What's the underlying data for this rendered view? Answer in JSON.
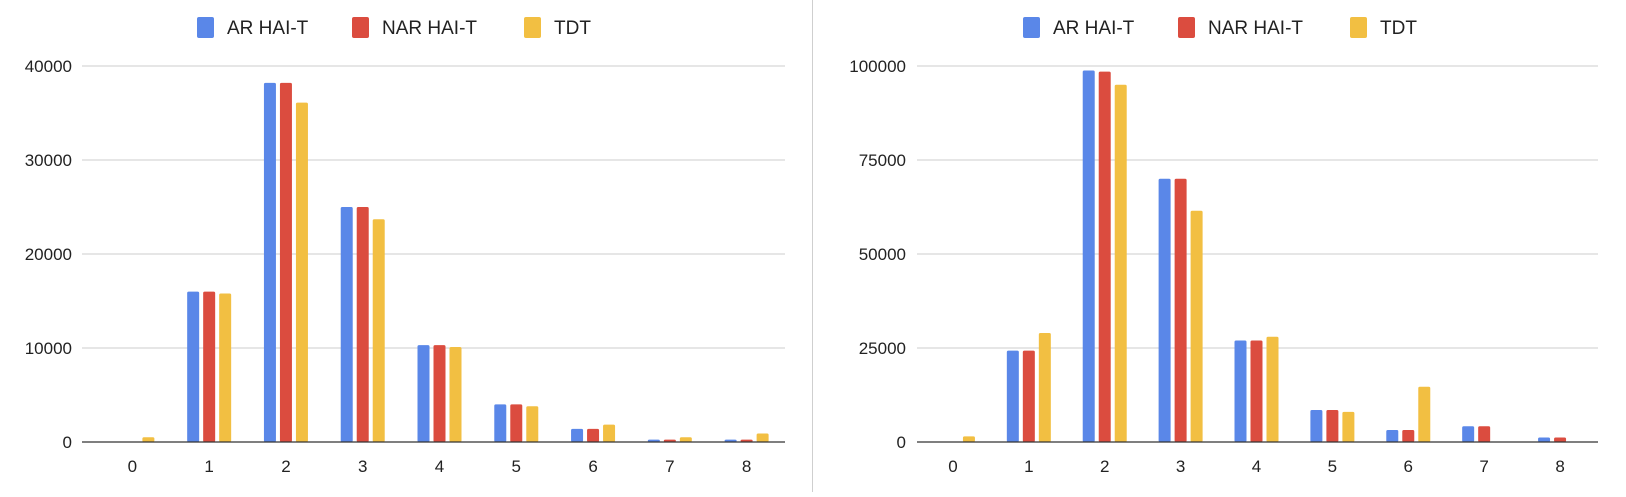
{
  "chart_data": [
    {
      "type": "bar",
      "categories": [
        "0",
        "1",
        "2",
        "3",
        "4",
        "5",
        "6",
        "7",
        "8"
      ],
      "series": [
        {
          "name": "AR HAI-T",
          "color": "#5a87e8",
          "values": [
            0,
            16000,
            38200,
            25000,
            10300,
            4000,
            1400,
            250,
            250
          ]
        },
        {
          "name": "NAR HAI-T",
          "color": "#db4c3f",
          "values": [
            0,
            16000,
            38200,
            25000,
            10300,
            4000,
            1400,
            250,
            250
          ]
        },
        {
          "name": "TDT",
          "color": "#f2bf42",
          "values": [
            500,
            15800,
            36100,
            23700,
            10100,
            3800,
            1850,
            500,
            900
          ]
        }
      ],
      "yticks": [
        "0",
        "10000",
        "20000",
        "30000",
        "40000"
      ],
      "ylim": [
        0,
        40000
      ],
      "grid": true,
      "legend": "top-center"
    },
    {
      "type": "bar",
      "categories": [
        "0",
        "1",
        "2",
        "3",
        "4",
        "5",
        "6",
        "7",
        "8"
      ],
      "series": [
        {
          "name": "AR HAI-T",
          "color": "#5a87e8",
          "values": [
            0,
            24300,
            98800,
            70000,
            27000,
            8500,
            3200,
            4200,
            1200
          ]
        },
        {
          "name": "NAR HAI-T",
          "color": "#db4c3f",
          "values": [
            0,
            24300,
            98500,
            70000,
            27000,
            8500,
            3200,
            4200,
            1200
          ]
        },
        {
          "name": "TDT",
          "color": "#f2bf42",
          "values": [
            1500,
            29000,
            95000,
            61500,
            28000,
            8000,
            14700,
            0,
            0
          ]
        }
      ],
      "yticks": [
        "0",
        "25000",
        "50000",
        "75000",
        "100000"
      ],
      "ylim": [
        0,
        100000
      ],
      "grid": true,
      "legend": "top-center"
    }
  ]
}
